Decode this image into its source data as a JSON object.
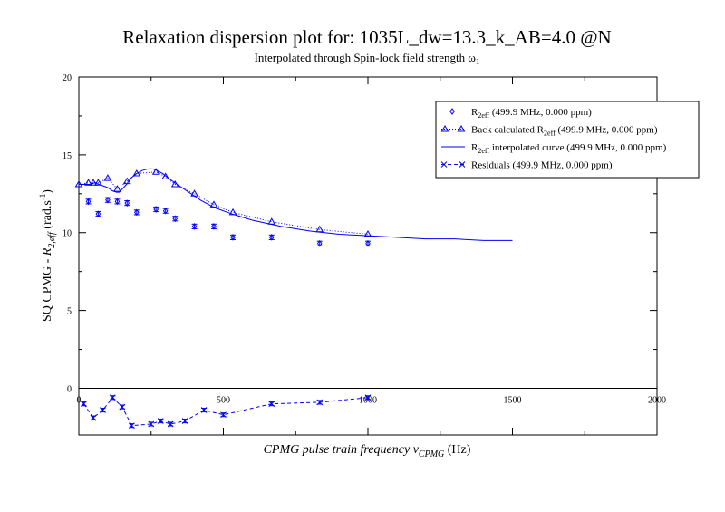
{
  "chart_data": {
    "type": "scatter",
    "title": "Relaxation dispersion plot for: 1035L_dw=13.3_k_AB=4.0 @N",
    "subtitle_text": "Interpolated through Spin-lock field strength ",
    "subtitle_symbol": "ω",
    "subtitle_sub": "1",
    "xlabel_main": "CPMG pulse train frequency ",
    "xlabel_nu": "ν",
    "xlabel_sub": "CPMG",
    "xlabel_unit": " (Hz)",
    "ylabel_main": "SQ CPMG - ",
    "ylabel_R": "R",
    "ylabel_sub": "2,eff",
    "ylabel_unit": " (rad.s",
    "ylabel_sup": "-1",
    "ylabel_close": ")",
    "xlim": [
      0,
      2000
    ],
    "ylim": [
      -3,
      20
    ],
    "x_ticks": [
      "0",
      "500",
      "1000",
      "1500",
      "2000"
    ],
    "y_ticks": [
      "0",
      "5",
      "10",
      "15",
      "20"
    ],
    "color": "#0000ff",
    "legend": {
      "placement": "top-right",
      "entries": [
        {
          "pre": "R",
          "sub": "2eff",
          "post": " (499.9 MHz, 0.000 ppm)"
        },
        {
          "pre": "Back calculated R",
          "sub": "2eff",
          "post": " (499.9 MHz, 0.000 ppm)"
        },
        {
          "pre": "R",
          "sub": "2eff",
          "post": " interpolated curve (499.9 MHz, 0.000 ppm)"
        },
        {
          "pre": "Residuals (499.9 MHz, 0.000 ppm)",
          "sub": "",
          "post": ""
        }
      ]
    },
    "series": [
      {
        "name": "R2eff (499.9 MHz, 0.000 ppm)",
        "x": [
          33,
          67,
          100,
          133,
          167,
          200,
          267,
          300,
          333,
          400,
          467,
          533,
          667,
          833,
          1000
        ],
        "y": [
          12.0,
          11.2,
          12.1,
          12.0,
          11.9,
          11.3,
          11.5,
          11.4,
          10.9,
          10.4,
          10.4,
          9.7,
          9.7,
          9.3,
          9.3
        ],
        "err": [
          0.15,
          0.15,
          0.15,
          0.15,
          0.15,
          0.15,
          0.15,
          0.15,
          0.15,
          0.15,
          0.15,
          0.15,
          0.15,
          0.15,
          0.15
        ]
      },
      {
        "name": "Back calculated R2eff (499.9 MHz, 0.000 ppm)",
        "x": [
          0,
          33,
          50,
          67,
          100,
          133,
          167,
          200,
          267,
          300,
          333,
          400,
          467,
          533,
          667,
          833,
          1000
        ],
        "y": [
          13.1,
          13.2,
          13.2,
          13.2,
          13.5,
          12.8,
          13.3,
          13.8,
          13.9,
          13.6,
          13.1,
          12.5,
          11.8,
          11.3,
          10.7,
          10.2,
          9.9
        ]
      },
      {
        "name": "R2eff interpolated curve (499.9 MHz, 0.000 ppm)",
        "x": [
          0,
          20,
          40,
          55,
          70,
          85,
          100,
          115,
          130,
          140,
          150,
          165,
          180,
          200,
          220,
          240,
          255,
          270,
          290,
          310,
          340,
          380,
          420,
          470,
          530,
          600,
          700,
          800,
          900,
          1000,
          1100,
          1200,
          1300,
          1400,
          1500
        ],
        "y": [
          13.1,
          13.1,
          13.1,
          13.2,
          13.1,
          13.0,
          12.9,
          12.7,
          12.6,
          12.6,
          12.8,
          13.1,
          13.5,
          13.8,
          14.0,
          14.1,
          14.1,
          14.0,
          13.8,
          13.5,
          13.1,
          12.6,
          12.1,
          11.6,
          11.2,
          10.8,
          10.4,
          10.1,
          9.9,
          9.8,
          9.7,
          9.6,
          9.6,
          9.5,
          9.5
        ]
      },
      {
        "name": "Residuals (499.9 MHz, 0.000 ppm)",
        "x": [
          17,
          50,
          83,
          117,
          150,
          183,
          250,
          283,
          317,
          367,
          433,
          500,
          667,
          833,
          1000
        ],
        "y": [
          -1.0,
          -1.9,
          -1.4,
          -0.6,
          -1.2,
          -2.4,
          -2.3,
          -2.1,
          -2.3,
          -2.1,
          -1.4,
          -1.7,
          -1.0,
          -0.9,
          -0.6
        ],
        "err": [
          0.12,
          0.12,
          0.12,
          0.12,
          0.12,
          0.12,
          0.12,
          0.12,
          0.12,
          0.12,
          0.12,
          0.12,
          0.12,
          0.12,
          0.12
        ]
      }
    ]
  }
}
